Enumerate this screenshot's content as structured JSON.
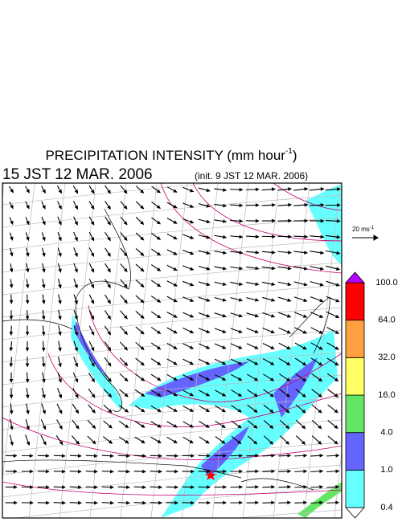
{
  "header": {
    "title": {
      "text": "PRECIPITATION INTENSITY (mm hour",
      "superscript": "-1",
      "close": ")"
    },
    "valid_time": "15 JST 12 MAR. 2006",
    "init_time": "(init. 9 JST 12 MAR. 2006)"
  },
  "wind_scale": {
    "text": "20 ms",
    "superscript": "-1"
  },
  "colorbar": {
    "labels": [
      "100.0",
      "64.0",
      "32.0",
      "16.0",
      "4.0",
      "1.0",
      "0.4"
    ],
    "colors": [
      "#ffffff",
      "#66ffff",
      "#6464ff",
      "#64e664",
      "#ffff64",
      "#ffa040",
      "#ff0000",
      "#b400ff"
    ]
  }
}
